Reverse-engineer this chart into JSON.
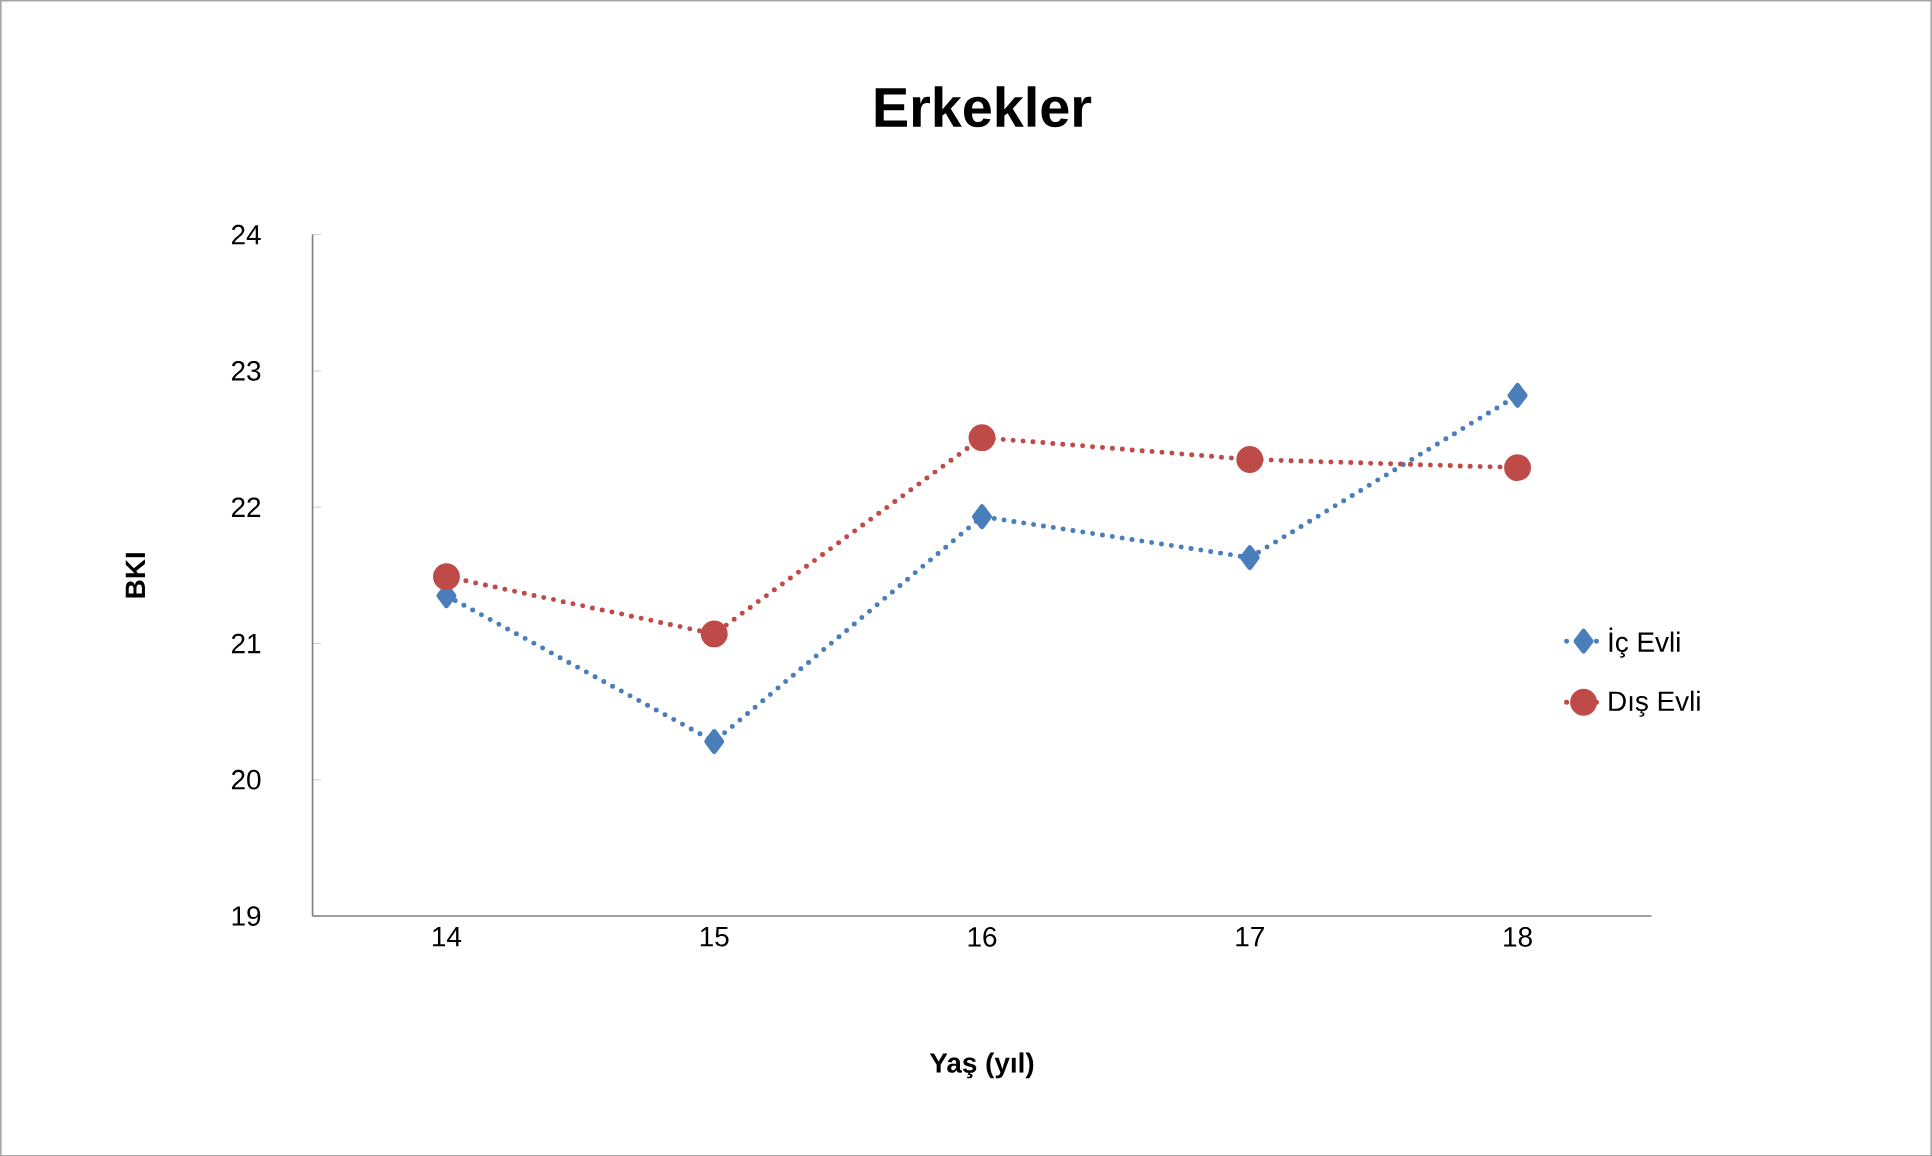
{
  "chart_data": {
    "type": "line",
    "title": "Erkekler",
    "xlabel": "Yaş (yıl)",
    "ylabel": "BKI",
    "categories": [
      "14",
      "15",
      "16",
      "17",
      "18"
    ],
    "series": [
      {
        "name": "İç Evli",
        "color": "#4a7ebb",
        "marker": "diamond",
        "values": [
          21.35,
          20.28,
          21.93,
          21.63,
          22.82
        ]
      },
      {
        "name": "Dış Evli",
        "color": "#be4b48",
        "marker": "circle",
        "values": [
          21.49,
          21.07,
          22.51,
          22.35,
          22.29
        ]
      }
    ],
    "ylim": [
      19,
      24
    ],
    "yticks": [
      19,
      20,
      21,
      22,
      23,
      24
    ],
    "grid": false,
    "legend": "right",
    "line_style": "dotted"
  }
}
